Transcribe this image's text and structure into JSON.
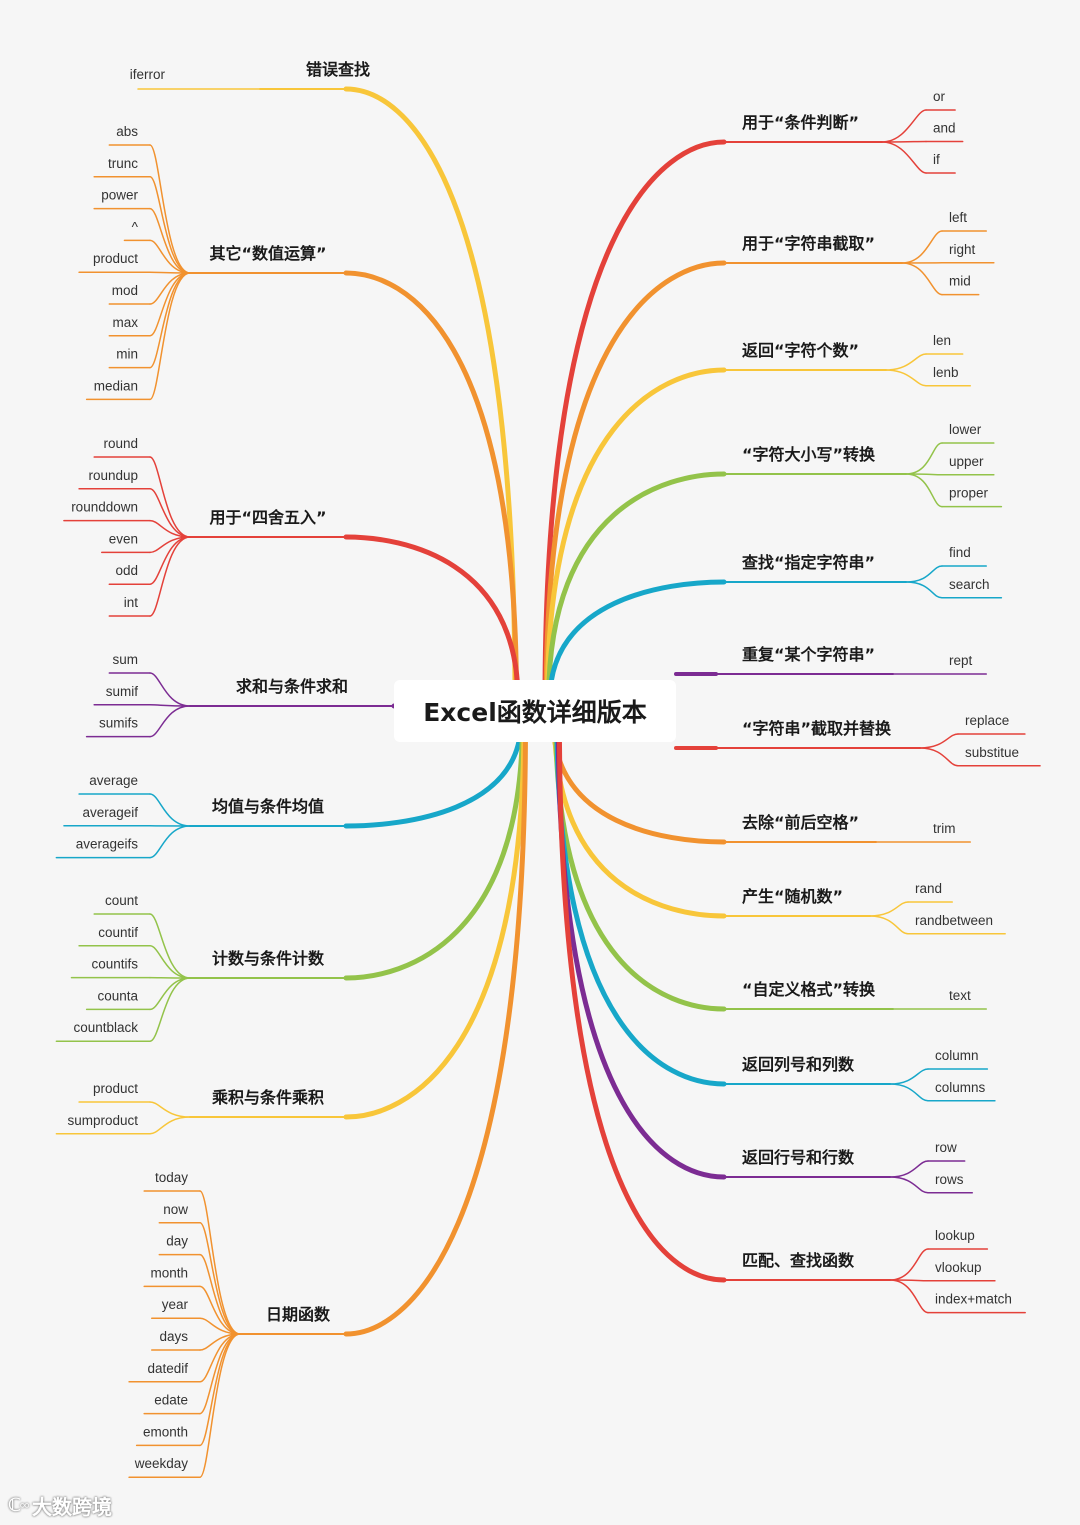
{
  "root": {
    "title": "Excel函数详细版本"
  },
  "watermark": {
    "logo": "ℂ◦◦",
    "text": "大数跨境"
  },
  "colors": {
    "red": "#e4413a",
    "orange": "#f1922f",
    "yellow": "#f8c63a",
    "green": "#93c34a",
    "cyan": "#17a7c9",
    "purple": "#7c2c93"
  },
  "left": [
    {
      "label": "错误查找",
      "color": "yellow",
      "children": [
        "iferror"
      ]
    },
    {
      "label": "其它“数值运算”",
      "color": "orange",
      "children": [
        "abs",
        "trunc",
        "power",
        "^",
        "product",
        "mod",
        "max",
        "min",
        "median"
      ]
    },
    {
      "label": "用于“四舍五入”",
      "color": "red",
      "children": [
        "round",
        "roundup",
        "rounddown",
        "even",
        "odd",
        "int"
      ]
    },
    {
      "label": "求和与条件求和",
      "color": "purple",
      "children": [
        "sum",
        "sumif",
        "sumifs"
      ]
    },
    {
      "label": "均值与条件均值",
      "color": "cyan",
      "children": [
        "average",
        "averageif",
        "averageifs"
      ]
    },
    {
      "label": "计数与条件计数",
      "color": "green",
      "children": [
        "count",
        "countif",
        "countifs",
        "counta",
        "countblack"
      ]
    },
    {
      "label": "乘积与条件乘积",
      "color": "yellow",
      "children": [
        "product",
        "sumproduct"
      ]
    },
    {
      "label": "日期函数",
      "color": "orange",
      "children": [
        "today",
        "now",
        "day",
        "month",
        "year",
        "days",
        "datedif",
        "edate",
        "emonth",
        "weekday"
      ]
    }
  ],
  "right": [
    {
      "label": "用于“条件判断”",
      "color": "red",
      "children": [
        "or",
        "and",
        "if"
      ]
    },
    {
      "label": "用于“字符串截取”",
      "color": "orange",
      "children": [
        "left",
        "right",
        "mid"
      ]
    },
    {
      "label": "返回“字符个数”",
      "color": "yellow",
      "children": [
        "len",
        "lenb"
      ]
    },
    {
      "label": "“字符大小写”转换",
      "color": "green",
      "children": [
        "lower",
        "upper",
        "proper"
      ]
    },
    {
      "label": "查找“指定字符串”",
      "color": "cyan",
      "children": [
        "find",
        "search"
      ]
    },
    {
      "label": "重复“某个字符串”",
      "color": "purple",
      "children": [
        "rept"
      ]
    },
    {
      "label": "“字符串”截取并替换",
      "color": "red",
      "children": [
        "replace",
        "substitue"
      ]
    },
    {
      "label": "去除“前后空格”",
      "color": "orange",
      "children": [
        "trim"
      ]
    },
    {
      "label": "产生“随机数”",
      "color": "yellow",
      "children": [
        "rand",
        "randbetween"
      ]
    },
    {
      "label": "“自定义格式”转换",
      "color": "green",
      "children": [
        "text"
      ]
    },
    {
      "label": "返回列号和列数",
      "color": "cyan",
      "children": [
        "column",
        "columns"
      ]
    },
    {
      "label": "返回行号和行数",
      "color": "purple",
      "children": [
        "row",
        "rows"
      ]
    },
    {
      "label": "匹配、查找函数",
      "color": "red",
      "children": [
        "lookup",
        "vlookup",
        "index+match"
      ]
    }
  ]
}
